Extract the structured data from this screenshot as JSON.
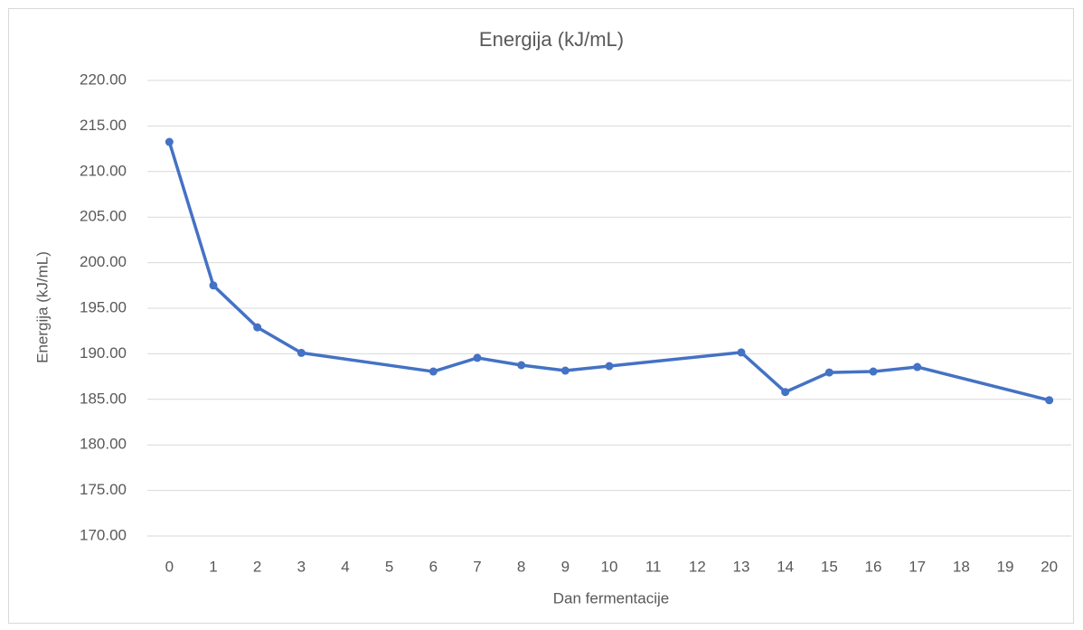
{
  "chart_data": {
    "type": "line",
    "title": "Energija (kJ/mL)",
    "x_label": "Dan fermentacije",
    "y_label": "Energija (kJ/mL)",
    "x": [
      0,
      1,
      2,
      3,
      6,
      7,
      8,
      9,
      10,
      13,
      14,
      15,
      16,
      17,
      20
    ],
    "series": [
      {
        "name": "Energija (kJ/mL)",
        "color": "#4472c4",
        "values": [
          213.25,
          197.5,
          192.9,
          190.1,
          188.05,
          189.55,
          188.75,
          188.15,
          188.65,
          190.15,
          185.8,
          187.95,
          188.05,
          188.55,
          184.9
        ]
      }
    ],
    "xlim": [
      -0.5,
      20.5
    ],
    "xticks": [
      0,
      1,
      2,
      3,
      4,
      5,
      6,
      7,
      8,
      9,
      10,
      11,
      12,
      13,
      14,
      15,
      16,
      17,
      18,
      19,
      20
    ],
    "ylim": [
      170,
      220
    ],
    "yticks": [
      {
        "value": 170,
        "label": "170.00"
      },
      {
        "value": 175,
        "label": "175.00"
      },
      {
        "value": 180,
        "label": "180.00"
      },
      {
        "value": 185,
        "label": "185.00"
      },
      {
        "value": 190,
        "label": "190.00"
      },
      {
        "value": 195,
        "label": "195.00"
      },
      {
        "value": 200,
        "label": "200.00"
      },
      {
        "value": 205,
        "label": "205.00"
      },
      {
        "value": 210,
        "label": "210.00"
      },
      {
        "value": 215,
        "label": "215.00"
      },
      {
        "value": 220,
        "label": "220.00"
      }
    ],
    "grid": true
  }
}
